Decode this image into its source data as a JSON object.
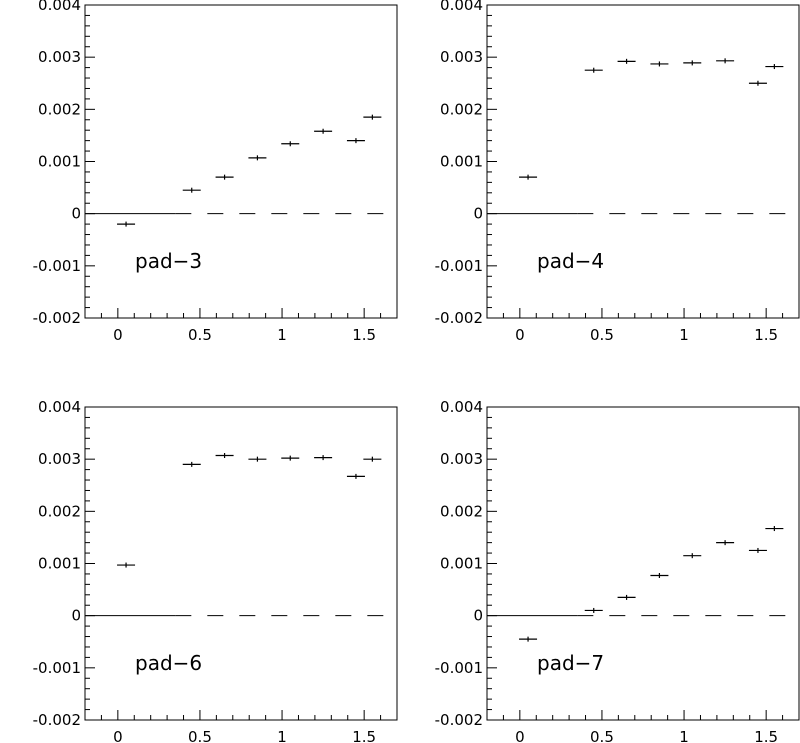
{
  "chart_data": [
    {
      "type": "scatter",
      "annotation": "pad−3",
      "xlim": [
        -0.2,
        1.7
      ],
      "ylim": [
        -0.002,
        0.004
      ],
      "xticks": [
        "0",
        "0.5",
        "1",
        "1.5"
      ],
      "yticks": [
        "-0.002",
        "-0.001",
        "0",
        "0.001",
        "0.002",
        "0.003",
        "0.004"
      ],
      "x": [
        0.05,
        0.45,
        0.65,
        0.85,
        1.05,
        1.25,
        1.45,
        1.55
      ],
      "y": [
        -0.0002,
        0.00045,
        0.0007,
        0.00107,
        0.00134,
        0.00158,
        0.0014,
        0.00185
      ],
      "grid": false
    },
    {
      "type": "scatter",
      "annotation": "pad−4",
      "xlim": [
        -0.2,
        1.7
      ],
      "ylim": [
        -0.002,
        0.004
      ],
      "xticks": [
        "0",
        "0.5",
        "1",
        "1.5"
      ],
      "yticks": [
        "-0.002",
        "-0.001",
        "0",
        "0.001",
        "0.002",
        "0.003",
        "0.004"
      ],
      "x": [
        0.05,
        0.45,
        0.65,
        0.85,
        1.05,
        1.25,
        1.45,
        1.55
      ],
      "y": [
        0.0007,
        0.00275,
        0.00292,
        0.00287,
        0.00289,
        0.00293,
        0.0025,
        0.00282
      ],
      "grid": false
    },
    {
      "type": "scatter",
      "annotation": "pad−6",
      "xlim": [
        -0.2,
        1.7
      ],
      "ylim": [
        -0.002,
        0.004
      ],
      "xticks": [
        "0",
        "0.5",
        "1",
        "1.5"
      ],
      "yticks": [
        "-0.002",
        "-0.001",
        "0",
        "0.001",
        "0.002",
        "0.003",
        "0.004"
      ],
      "x": [
        0.05,
        0.45,
        0.65,
        0.85,
        1.05,
        1.25,
        1.45,
        1.55
      ],
      "y": [
        0.00097,
        0.0029,
        0.00307,
        0.003,
        0.00302,
        0.00303,
        0.00267,
        0.003
      ],
      "grid": false
    },
    {
      "type": "scatter",
      "annotation": "pad−7",
      "xlim": [
        -0.2,
        1.7
      ],
      "ylim": [
        -0.002,
        0.004
      ],
      "xticks": [
        "0",
        "0.5",
        "1",
        "1.5"
      ],
      "yticks": [
        "-0.002",
        "-0.001",
        "0",
        "0.001",
        "0.002",
        "0.003",
        "0.004"
      ],
      "x": [
        0.05,
        0.45,
        0.65,
        0.85,
        1.05,
        1.25,
        1.45,
        1.55
      ],
      "y": [
        -0.00045,
        0.0001,
        0.00035,
        0.00077,
        0.00115,
        0.0014,
        0.00125,
        0.00167
      ],
      "grid": false
    }
  ]
}
